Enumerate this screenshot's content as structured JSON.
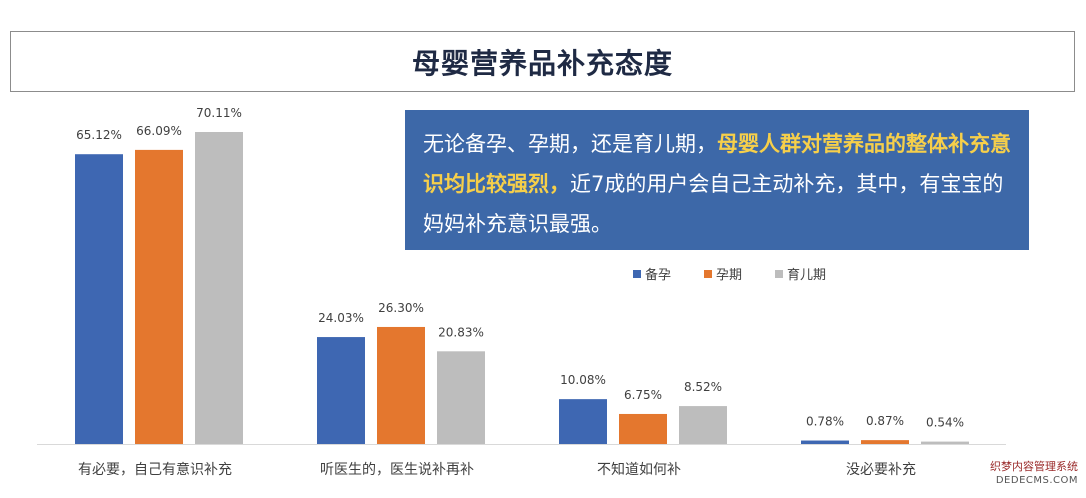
{
  "title": "母婴营养品补充态度",
  "callout": {
    "part1": "无论备孕、孕期，还是育儿期，",
    "highlight": "母婴人群对营养品的整体补充意识均比较强烈，",
    "part2": "近7成的用户会自己主动补充，其中，有宝宝的妈妈补充意识最强。"
  },
  "chart_data": {
    "type": "bar",
    "categories": [
      "有必要，自己有意识补充",
      "听医生的，医生说补再补",
      "不知道如何补",
      "没必要补充"
    ],
    "series": [
      {
        "name": "备孕",
        "color": "#3e67b2",
        "values": [
          65.12,
          24.03,
          10.08,
          0.78
        ],
        "labels": [
          "65.12%",
          "24.03%",
          "10.08%",
          "0.78%"
        ]
      },
      {
        "name": "孕期",
        "color": "#e4772e",
        "values": [
          66.09,
          26.3,
          6.75,
          0.87
        ],
        "labels": [
          "66.09%",
          "26.30%",
          "6.75%",
          "0.87%"
        ]
      },
      {
        "name": "育儿期",
        "color": "#bdbdbd",
        "values": [
          70.11,
          20.83,
          8.52,
          0.54
        ],
        "labels": [
          "70.11%",
          "20.83%",
          "8.52%",
          "0.54%"
        ]
      }
    ],
    "ylim": [
      0,
      70.11
    ],
    "legend": "top-right",
    "grid": false
  },
  "watermark": {
    "line1": "织梦内容管理系统",
    "line2": "DEDECMS.COM"
  }
}
